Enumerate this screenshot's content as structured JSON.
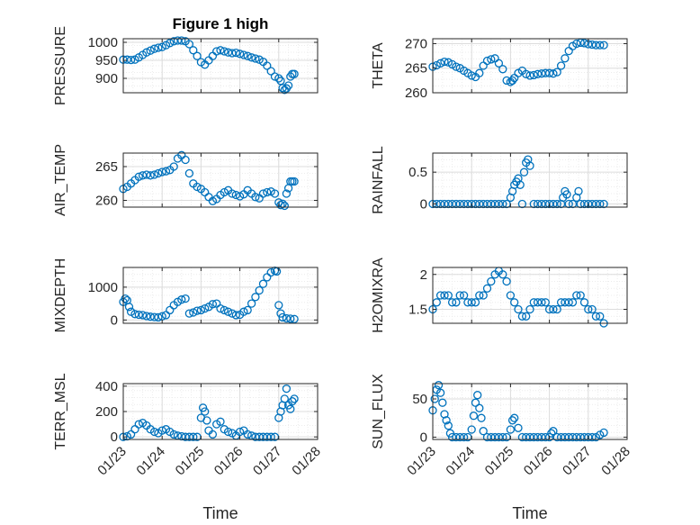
{
  "figure": {
    "title": "Figure 1 high",
    "marker_color": "#0072BD",
    "axis_color": "#262626"
  },
  "chart_data": [
    {
      "type": "scatter",
      "id": "pressure",
      "ylabel": "PRESSURE",
      "ylim": [
        860,
        1010
      ],
      "yticks": [
        900,
        950,
        1000
      ],
      "xlim": [
        0,
        5
      ],
      "xtick_labels": [],
      "x": [
        0.0,
        0.1,
        0.2,
        0.3,
        0.4,
        0.5,
        0.6,
        0.7,
        0.8,
        0.9,
        1.0,
        1.1,
        1.2,
        1.3,
        1.4,
        1.5,
        1.6,
        1.7,
        1.8,
        1.9,
        2.0,
        2.1,
        2.2,
        2.3,
        2.4,
        2.5,
        2.6,
        2.7,
        2.8,
        2.9,
        3.0,
        3.1,
        3.2,
        3.3,
        3.4,
        3.5,
        3.6,
        3.7,
        3.8,
        3.9,
        4.0,
        4.05,
        4.1,
        4.15,
        4.2,
        4.25,
        4.3,
        4.35,
        4.4
      ],
      "y": [
        952,
        952,
        951,
        952,
        958,
        965,
        972,
        977,
        982,
        985,
        987,
        992,
        998,
        1003,
        1005,
        1005,
        1003,
        995,
        978,
        962,
        945,
        938,
        950,
        962,
        975,
        978,
        975,
        972,
        970,
        971,
        968,
        965,
        962,
        958,
        955,
        952,
        946,
        935,
        920,
        905,
        900,
        893,
        873,
        868,
        872,
        880,
        905,
        912,
        912
      ]
    },
    {
      "type": "scatter",
      "id": "theta",
      "ylabel": "THETA",
      "ylim": [
        260,
        271
      ],
      "yticks": [
        260,
        265,
        270
      ],
      "xlim": [
        0,
        5
      ],
      "xtick_labels": [],
      "x": [
        0.0,
        0.1,
        0.2,
        0.3,
        0.4,
        0.5,
        0.6,
        0.7,
        0.8,
        0.9,
        1.0,
        1.1,
        1.2,
        1.3,
        1.4,
        1.5,
        1.6,
        1.7,
        1.8,
        1.9,
        2.0,
        2.05,
        2.1,
        2.2,
        2.3,
        2.4,
        2.5,
        2.6,
        2.7,
        2.8,
        2.9,
        3.0,
        3.1,
        3.2,
        3.3,
        3.4,
        3.5,
        3.6,
        3.7,
        3.8,
        3.9,
        4.0,
        4.1,
        4.2,
        4.3,
        4.4
      ],
      "y": [
        265.3,
        265.6,
        266.0,
        266.3,
        266.2,
        265.8,
        265.3,
        265.0,
        264.5,
        264.0,
        263.5,
        263.2,
        264.0,
        265.5,
        266.5,
        266.8,
        267.0,
        266.0,
        264.8,
        262.5,
        262.2,
        262.5,
        263.0,
        264.0,
        264.5,
        263.8,
        263.5,
        263.6,
        263.8,
        263.9,
        264.0,
        264.0,
        263.9,
        264.2,
        265.5,
        267.0,
        268.5,
        269.5,
        270.0,
        270.2,
        270.1,
        269.9,
        269.8,
        269.7,
        269.7,
        269.7
      ]
    },
    {
      "type": "scatter",
      "id": "air_temp",
      "ylabel": "AIR_TEMP",
      "ylim": [
        259,
        267
      ],
      "yticks": [
        260,
        265
      ],
      "xlim": [
        0,
        5
      ],
      "xtick_labels": [],
      "x": [
        0.0,
        0.1,
        0.2,
        0.3,
        0.4,
        0.5,
        0.6,
        0.7,
        0.8,
        0.9,
        1.0,
        1.1,
        1.2,
        1.3,
        1.4,
        1.5,
        1.6,
        1.7,
        1.8,
        1.9,
        2.0,
        2.1,
        2.2,
        2.3,
        2.4,
        2.5,
        2.6,
        2.7,
        2.8,
        2.9,
        3.0,
        3.1,
        3.2,
        3.3,
        3.4,
        3.5,
        3.6,
        3.7,
        3.8,
        3.9,
        4.0,
        4.05,
        4.1,
        4.15,
        4.2,
        4.25,
        4.3,
        4.35,
        4.4
      ],
      "y": [
        261.7,
        262.0,
        262.5,
        263.0,
        263.5,
        263.7,
        263.8,
        263.7,
        263.8,
        264.0,
        264.2,
        264.3,
        264.5,
        265.0,
        266.2,
        266.7,
        266.0,
        264.0,
        262.5,
        262.0,
        261.7,
        261.2,
        260.5,
        259.9,
        260.2,
        260.8,
        261.2,
        261.5,
        261.0,
        260.8,
        260.6,
        260.9,
        261.5,
        261.0,
        260.5,
        260.3,
        261.0,
        261.2,
        261.3,
        261.0,
        259.7,
        259.3,
        259.5,
        259.2,
        261.0,
        261.8,
        262.8,
        262.8,
        262.8
      ]
    },
    {
      "type": "scatter",
      "id": "rainfall",
      "ylabel": "RAINFALL",
      "ylim": [
        -0.05,
        0.8
      ],
      "yticks": [
        0,
        0.5
      ],
      "xlim": [
        0,
        5
      ],
      "xtick_labels": [],
      "x": [
        0.0,
        0.1,
        0.2,
        0.3,
        0.4,
        0.5,
        0.6,
        0.7,
        0.8,
        0.9,
        1.0,
        1.1,
        1.2,
        1.3,
        1.4,
        1.5,
        1.6,
        1.7,
        1.8,
        1.9,
        2.0,
        2.05,
        2.1,
        2.15,
        2.2,
        2.25,
        2.3,
        2.35,
        2.4,
        2.45,
        2.5,
        2.6,
        2.7,
        2.8,
        2.9,
        3.0,
        3.1,
        3.2,
        3.3,
        3.35,
        3.4,
        3.45,
        3.5,
        3.6,
        3.7,
        3.75,
        3.8,
        3.9,
        4.0,
        4.1,
        4.2,
        4.3,
        4.4
      ],
      "y": [
        0,
        0,
        0,
        0,
        0,
        0,
        0,
        0,
        0,
        0,
        0,
        0,
        0,
        0,
        0,
        0,
        0,
        0,
        0,
        0,
        0.1,
        0.2,
        0.3,
        0.35,
        0.4,
        0.3,
        0.0,
        0.5,
        0.65,
        0.7,
        0.6,
        0,
        0,
        0,
        0,
        0,
        0,
        0,
        0,
        0.1,
        0.2,
        0.15,
        0,
        0,
        0.1,
        0.2,
        0,
        0,
        0,
        0,
        0,
        0,
        0
      ]
    },
    {
      "type": "scatter",
      "id": "mixdepth",
      "ylabel": "MIXDEPTH",
      "ylim": [
        -100,
        1600
      ],
      "yticks": [
        0,
        1000
      ],
      "xlim": [
        0,
        5
      ],
      "xtick_labels": [],
      "x": [
        0.0,
        0.05,
        0.1,
        0.15,
        0.2,
        0.3,
        0.4,
        0.5,
        0.6,
        0.7,
        0.8,
        0.9,
        1.0,
        1.1,
        1.2,
        1.3,
        1.4,
        1.5,
        1.6,
        1.7,
        1.8,
        1.9,
        2.0,
        2.1,
        2.2,
        2.3,
        2.4,
        2.5,
        2.6,
        2.7,
        2.8,
        2.9,
        3.0,
        3.1,
        3.2,
        3.3,
        3.4,
        3.5,
        3.6,
        3.7,
        3.8,
        3.9,
        3.95,
        4.0,
        4.05,
        4.1,
        4.2,
        4.3,
        4.4
      ],
      "y": [
        550,
        650,
        600,
        400,
        250,
        180,
        160,
        150,
        120,
        100,
        90,
        80,
        110,
        150,
        300,
        450,
        550,
        620,
        650,
        200,
        230,
        280,
        300,
        350,
        400,
        480,
        500,
        350,
        300,
        250,
        200,
        150,
        160,
        250,
        300,
        500,
        700,
        900,
        1100,
        1300,
        1450,
        1500,
        1480,
        450,
        200,
        80,
        50,
        40,
        30
      ]
    },
    {
      "type": "scatter",
      "id": "h2omixra",
      "ylabel": "H2OMIXRA",
      "ylim": [
        1.3,
        2.1
      ],
      "yticks": [
        1.5,
        2
      ],
      "xlim": [
        0,
        5
      ],
      "xtick_labels": [],
      "x": [
        0.0,
        0.1,
        0.2,
        0.3,
        0.4,
        0.5,
        0.6,
        0.7,
        0.8,
        0.9,
        1.0,
        1.1,
        1.2,
        1.3,
        1.4,
        1.5,
        1.6,
        1.7,
        1.8,
        1.9,
        2.0,
        2.1,
        2.2,
        2.3,
        2.4,
        2.5,
        2.6,
        2.7,
        2.8,
        2.9,
        3.0,
        3.1,
        3.2,
        3.3,
        3.4,
        3.5,
        3.6,
        3.7,
        3.8,
        3.9,
        4.0,
        4.1,
        4.2,
        4.3,
        4.4
      ],
      "y": [
        1.5,
        1.6,
        1.7,
        1.7,
        1.7,
        1.6,
        1.6,
        1.7,
        1.7,
        1.6,
        1.6,
        1.6,
        1.7,
        1.7,
        1.8,
        1.9,
        2.0,
        2.05,
        2.0,
        1.9,
        1.7,
        1.6,
        1.5,
        1.4,
        1.4,
        1.5,
        1.6,
        1.6,
        1.6,
        1.6,
        1.5,
        1.5,
        1.5,
        1.6,
        1.6,
        1.6,
        1.6,
        1.7,
        1.7,
        1.6,
        1.5,
        1.5,
        1.4,
        1.4,
        1.3
      ]
    },
    {
      "type": "scatter",
      "id": "terr_msl",
      "ylabel": "TERR_MSL",
      "ylim": [
        -20,
        420
      ],
      "yticks": [
        0,
        200,
        400
      ],
      "xlim": [
        0,
        5
      ],
      "xtick_labels": [
        "01/23",
        "01/24",
        "01/25",
        "01/26",
        "01/27",
        "01/28"
      ],
      "xlabel": "Time",
      "x": [
        0.0,
        0.1,
        0.2,
        0.3,
        0.4,
        0.5,
        0.6,
        0.7,
        0.8,
        0.9,
        1.0,
        1.1,
        1.2,
        1.3,
        1.4,
        1.5,
        1.6,
        1.7,
        1.8,
        1.9,
        2.0,
        2.05,
        2.1,
        2.15,
        2.2,
        2.3,
        2.4,
        2.5,
        2.6,
        2.7,
        2.8,
        2.9,
        3.0,
        3.1,
        3.2,
        3.3,
        3.4,
        3.5,
        3.6,
        3.7,
        3.8,
        3.9,
        4.0,
        4.05,
        4.1,
        4.15,
        4.2,
        4.25,
        4.3,
        4.35,
        4.4
      ],
      "y": [
        0,
        5,
        20,
        60,
        100,
        110,
        90,
        60,
        40,
        30,
        50,
        60,
        40,
        20,
        10,
        5,
        0,
        0,
        0,
        0,
        150,
        230,
        200,
        130,
        50,
        20,
        100,
        120,
        60,
        40,
        30,
        10,
        40,
        50,
        20,
        10,
        0,
        0,
        0,
        0,
        0,
        0,
        150,
        200,
        250,
        300,
        380,
        250,
        220,
        280,
        300
      ]
    },
    {
      "type": "scatter",
      "id": "sun_flux",
      "ylabel": "SUN_FLUX",
      "ylim": [
        -3,
        70
      ],
      "yticks": [
        0,
        50
      ],
      "xlim": [
        0,
        5
      ],
      "xtick_labels": [
        "01/23",
        "01/24",
        "01/25",
        "01/26",
        "01/27",
        "01/28"
      ],
      "xlabel": "Time",
      "x": [
        0.0,
        0.05,
        0.1,
        0.15,
        0.2,
        0.25,
        0.3,
        0.35,
        0.4,
        0.45,
        0.5,
        0.6,
        0.7,
        0.8,
        0.9,
        1.0,
        1.05,
        1.1,
        1.15,
        1.2,
        1.25,
        1.3,
        1.4,
        1.5,
        1.6,
        1.7,
        1.8,
        1.9,
        2.0,
        2.05,
        2.1,
        2.2,
        2.3,
        2.4,
        2.5,
        2.6,
        2.7,
        2.8,
        2.9,
        3.0,
        3.05,
        3.1,
        3.2,
        3.3,
        3.4,
        3.5,
        3.6,
        3.7,
        3.8,
        3.9,
        4.0,
        4.1,
        4.2,
        4.3,
        4.4
      ],
      "y": [
        35,
        50,
        62,
        68,
        58,
        45,
        30,
        22,
        15,
        5,
        0,
        0,
        0,
        0,
        0,
        10,
        28,
        45,
        55,
        38,
        25,
        8,
        0,
        0,
        0,
        0,
        0,
        0,
        10,
        22,
        25,
        12,
        0,
        0,
        0,
        0,
        0,
        0,
        0,
        0,
        5,
        8,
        0,
        0,
        0,
        0,
        0,
        0,
        0,
        0,
        0,
        0,
        0,
        3,
        6
      ]
    }
  ]
}
